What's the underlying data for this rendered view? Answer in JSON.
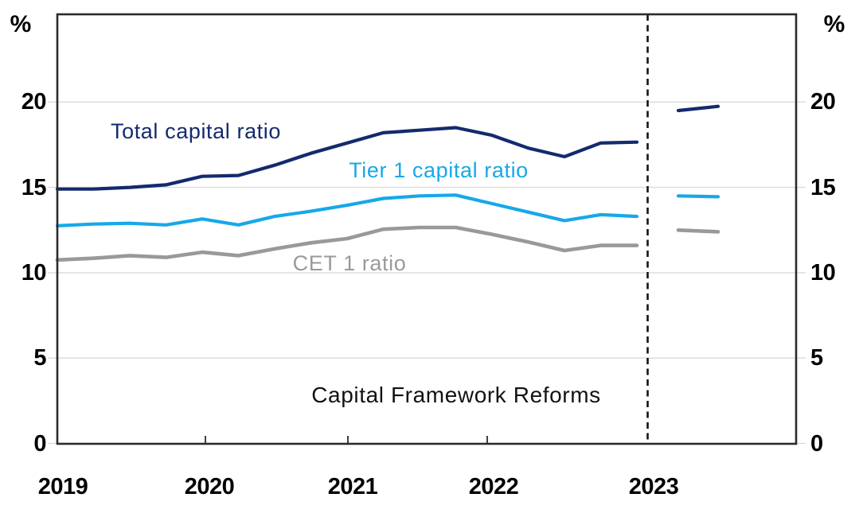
{
  "axes": {
    "left_unit": "%",
    "right_unit": "%",
    "y_tick_labels": [
      "0",
      "5",
      "10",
      "15",
      "20"
    ],
    "x_tick_labels": [
      "2019",
      "2020",
      "2021",
      "2022",
      "2023"
    ]
  },
  "annotations": {
    "total": "Total capital ratio",
    "tier1": "Tier 1 capital ratio",
    "cet1": "CET 1 ratio",
    "reforms": "Capital Framework Reforms"
  },
  "colors": {
    "total": "#142a6e",
    "tier1": "#17a8e8",
    "cet1": "#999999",
    "grid": "#dadada",
    "frame": "#2b2b2b",
    "event_line": "#141414",
    "text": "#000000"
  },
  "chart_data": {
    "type": "line",
    "title": "",
    "ylabel_left": "%",
    "ylabel_right": "%",
    "ylim": [
      0,
      25
    ],
    "y_ticks": [
      0,
      5,
      10,
      15,
      20
    ],
    "x_year_ticks": [
      "2019",
      "2020",
      "2021",
      "2022",
      "2023"
    ],
    "grid": "horizontal",
    "legend": "inline-labels",
    "categories": [
      "Dec 2018",
      "Mar 2019",
      "Jun 2019",
      "Sep 2019",
      "Dec 2019",
      "Mar 2020",
      "Jun 2020",
      "Sep 2020",
      "Dec 2020",
      "Mar 2021",
      "Jun 2021",
      "Sep 2021",
      "Dec 2021",
      "Mar 2022",
      "Jun 2022",
      "Sep 2022",
      "Dec 2022"
    ],
    "series": [
      {
        "name": "Total capital ratio",
        "color_key": "total",
        "values": [
          14.9,
          14.9,
          15.0,
          15.15,
          15.65,
          15.7,
          16.3,
          17.0,
          17.6,
          18.2,
          18.35,
          18.5,
          18.05,
          17.3,
          16.8,
          17.6,
          17.65
        ]
      },
      {
        "name": "Tier 1 capital ratio",
        "color_key": "tier1",
        "values": [
          12.75,
          12.85,
          12.9,
          12.8,
          13.15,
          12.8,
          13.3,
          13.6,
          13.95,
          14.35,
          14.5,
          14.55,
          14.05,
          13.55,
          13.05,
          13.4,
          13.3
        ]
      },
      {
        "name": "CET 1 ratio",
        "color_key": "cet1",
        "values": [
          10.75,
          10.85,
          11.0,
          10.9,
          11.2,
          11.0,
          11.4,
          11.75,
          12.0,
          12.55,
          12.65,
          12.65,
          12.25,
          11.8,
          11.3,
          11.6,
          11.6
        ]
      }
    ],
    "post_reform": {
      "categories": [
        "Mar 2023",
        "Jun 2023"
      ],
      "series": [
        {
          "name": "Total capital ratio",
          "color_key": "total",
          "values": [
            19.5,
            19.75
          ]
        },
        {
          "name": "Tier 1 capital ratio",
          "color_key": "tier1",
          "values": [
            14.5,
            14.45
          ]
        },
        {
          "name": "CET 1 ratio",
          "color_key": "cet1",
          "values": [
            12.5,
            12.4
          ]
        }
      ]
    },
    "event_line": {
      "label": "Capital Framework Reforms",
      "position": "between Dec 2022 and Mar 2023"
    }
  }
}
